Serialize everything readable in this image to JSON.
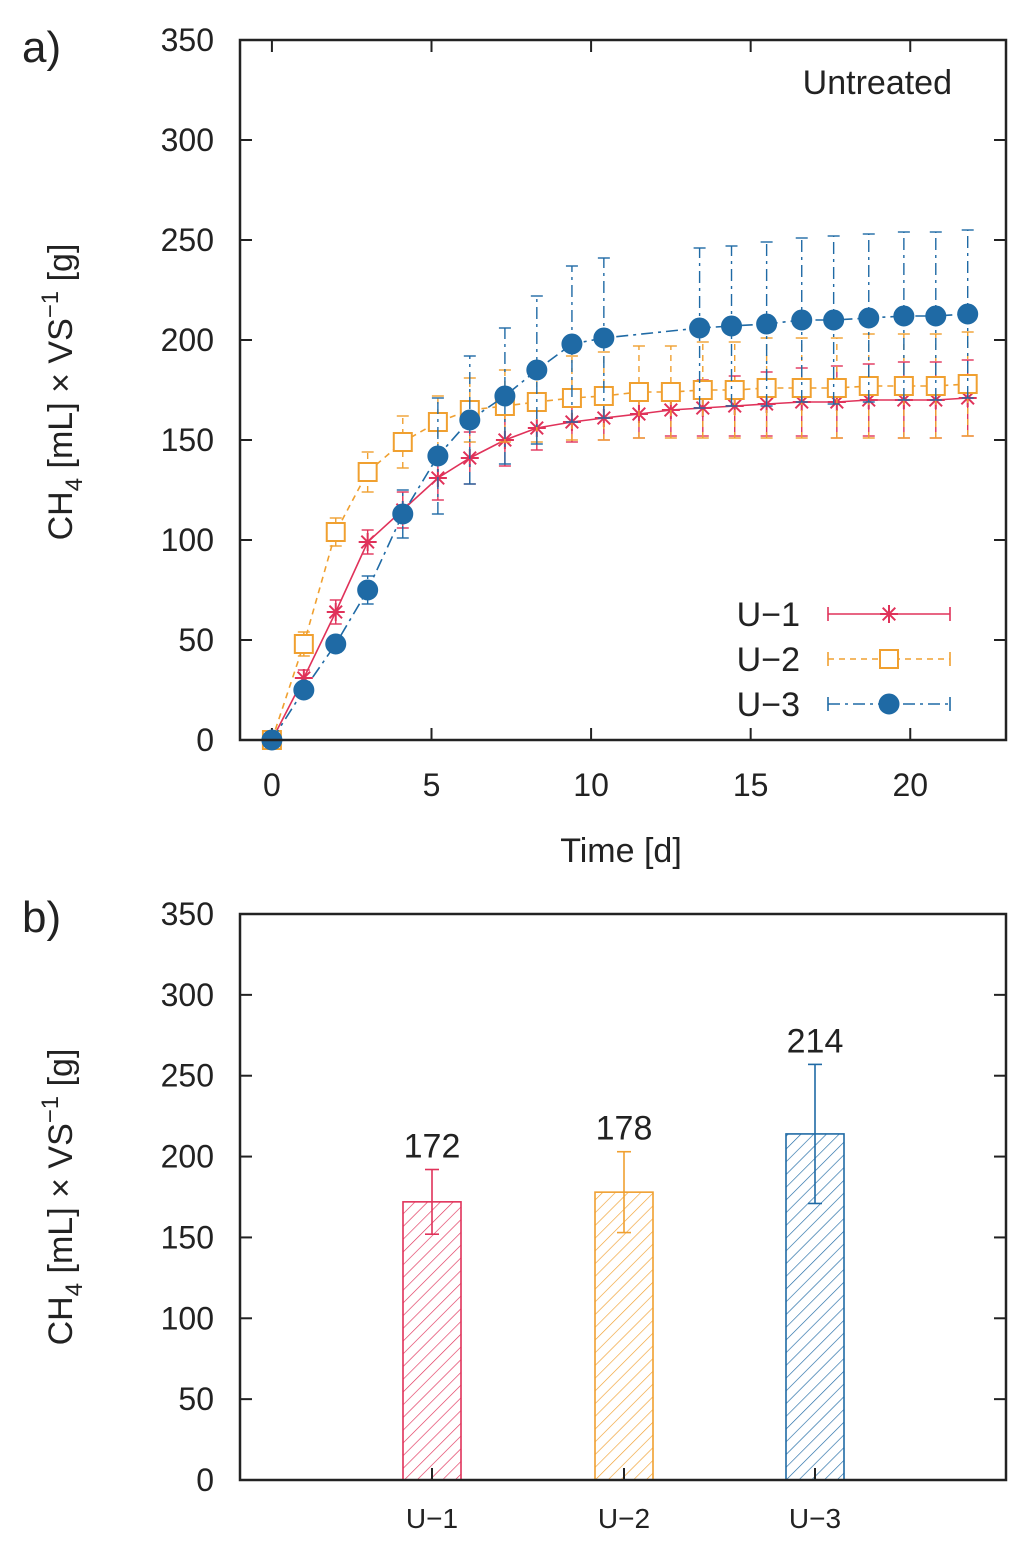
{
  "panel_a": {
    "label": "a)",
    "annotation": "Untreated",
    "xlabel": "Time [d]",
    "ylabel_main": "CH",
    "ylabel_sub": "4",
    "ylabel_rest": " [mL] × VS",
    "ylabel_sup": "−1",
    "ylabel_end": " [g]"
  },
  "panel_b": {
    "label": "b)",
    "ylabel_main": "CH",
    "ylabel_sub": "4",
    "ylabel_rest": " [mL] × VS",
    "ylabel_sup": "−1",
    "ylabel_end": " [g]"
  },
  "colors": {
    "U-1": "#e0325a",
    "U-2": "#f0a030",
    "U-3": "#1f6aa5"
  },
  "chart_data": [
    {
      "type": "line",
      "title": "Untreated",
      "xlabel": "Time [d]",
      "ylabel": "CH4 [mL] × VS−1 [g]",
      "xlim": [
        -1,
        23
      ],
      "ylim": [
        0,
        350
      ],
      "xticks": [
        0,
        5,
        10,
        15,
        20
      ],
      "yticks": [
        0,
        50,
        100,
        150,
        200,
        250,
        300,
        350
      ],
      "legend_position": "bottom-right",
      "series": [
        {
          "name": "U−1",
          "marker": "asterisk",
          "line": "solid",
          "x": [
            0,
            1,
            2,
            3,
            4.1,
            5.2,
            6.2,
            7.3,
            8.3,
            9.4,
            10.4,
            11.5,
            12.5,
            13.5,
            14.5,
            15.5,
            16.6,
            17.7,
            18.7,
            19.8,
            20.8,
            21.8
          ],
          "y": [
            0,
            31,
            64,
            99,
            115,
            131,
            141,
            150,
            156,
            159,
            161,
            163,
            165,
            166,
            167,
            168,
            169,
            169,
            170,
            170,
            170,
            171
          ],
          "err": [
            0,
            4,
            6,
            6,
            9,
            11,
            13,
            13,
            11,
            10,
            11,
            12,
            13,
            14,
            15,
            16,
            17,
            18,
            18,
            19,
            19,
            19
          ]
        },
        {
          "name": "U−2",
          "marker": "open-square",
          "line": "dashed",
          "x": [
            0,
            1,
            2,
            3,
            4.1,
            5.2,
            6.2,
            7.3,
            8.3,
            9.4,
            10.4,
            11.5,
            12.5,
            13.5,
            14.5,
            15.5,
            16.6,
            17.7,
            18.7,
            19.8,
            20.8,
            21.8
          ],
          "y": [
            0,
            48,
            104,
            134,
            149,
            159,
            165,
            167,
            169,
            171,
            172,
            174,
            174,
            175,
            175,
            176,
            176,
            176,
            177,
            177,
            177,
            178
          ],
          "err": [
            0,
            6,
            7,
            10,
            13,
            13,
            16,
            18,
            20,
            21,
            22,
            23,
            23,
            24,
            24,
            25,
            25,
            25,
            26,
            26,
            26,
            26
          ]
        },
        {
          "name": "U−3",
          "marker": "filled-circle",
          "line": "dash-dot",
          "x": [
            0,
            1,
            2,
            3,
            4.1,
            5.2,
            6.2,
            7.3,
            8.3,
            9.4,
            10.4,
            13.4,
            14.4,
            15.5,
            16.6,
            17.6,
            18.7,
            19.8,
            20.8,
            21.8
          ],
          "y": [
            0,
            25,
            48,
            75,
            113,
            142,
            160,
            172,
            185,
            198,
            201,
            206,
            207,
            208,
            210,
            210,
            211,
            212,
            212,
            213
          ],
          "err": [
            0,
            3,
            4,
            7,
            12,
            29,
            32,
            34,
            37,
            39,
            40,
            40,
            40,
            41,
            41,
            42,
            42,
            42,
            42,
            42
          ]
        }
      ]
    },
    {
      "type": "bar",
      "ylabel": "CH4 [mL] × VS−1 [g]",
      "ylim": [
        0,
        350
      ],
      "yticks": [
        0,
        50,
        100,
        150,
        200,
        250,
        300,
        350
      ],
      "categories": [
        "U−1",
        "U−2",
        "U−3"
      ],
      "values": [
        172,
        178,
        214
      ],
      "value_labels": [
        "172",
        "178",
        "214"
      ],
      "err": [
        20,
        25,
        43
      ],
      "fill": "hatched"
    }
  ]
}
